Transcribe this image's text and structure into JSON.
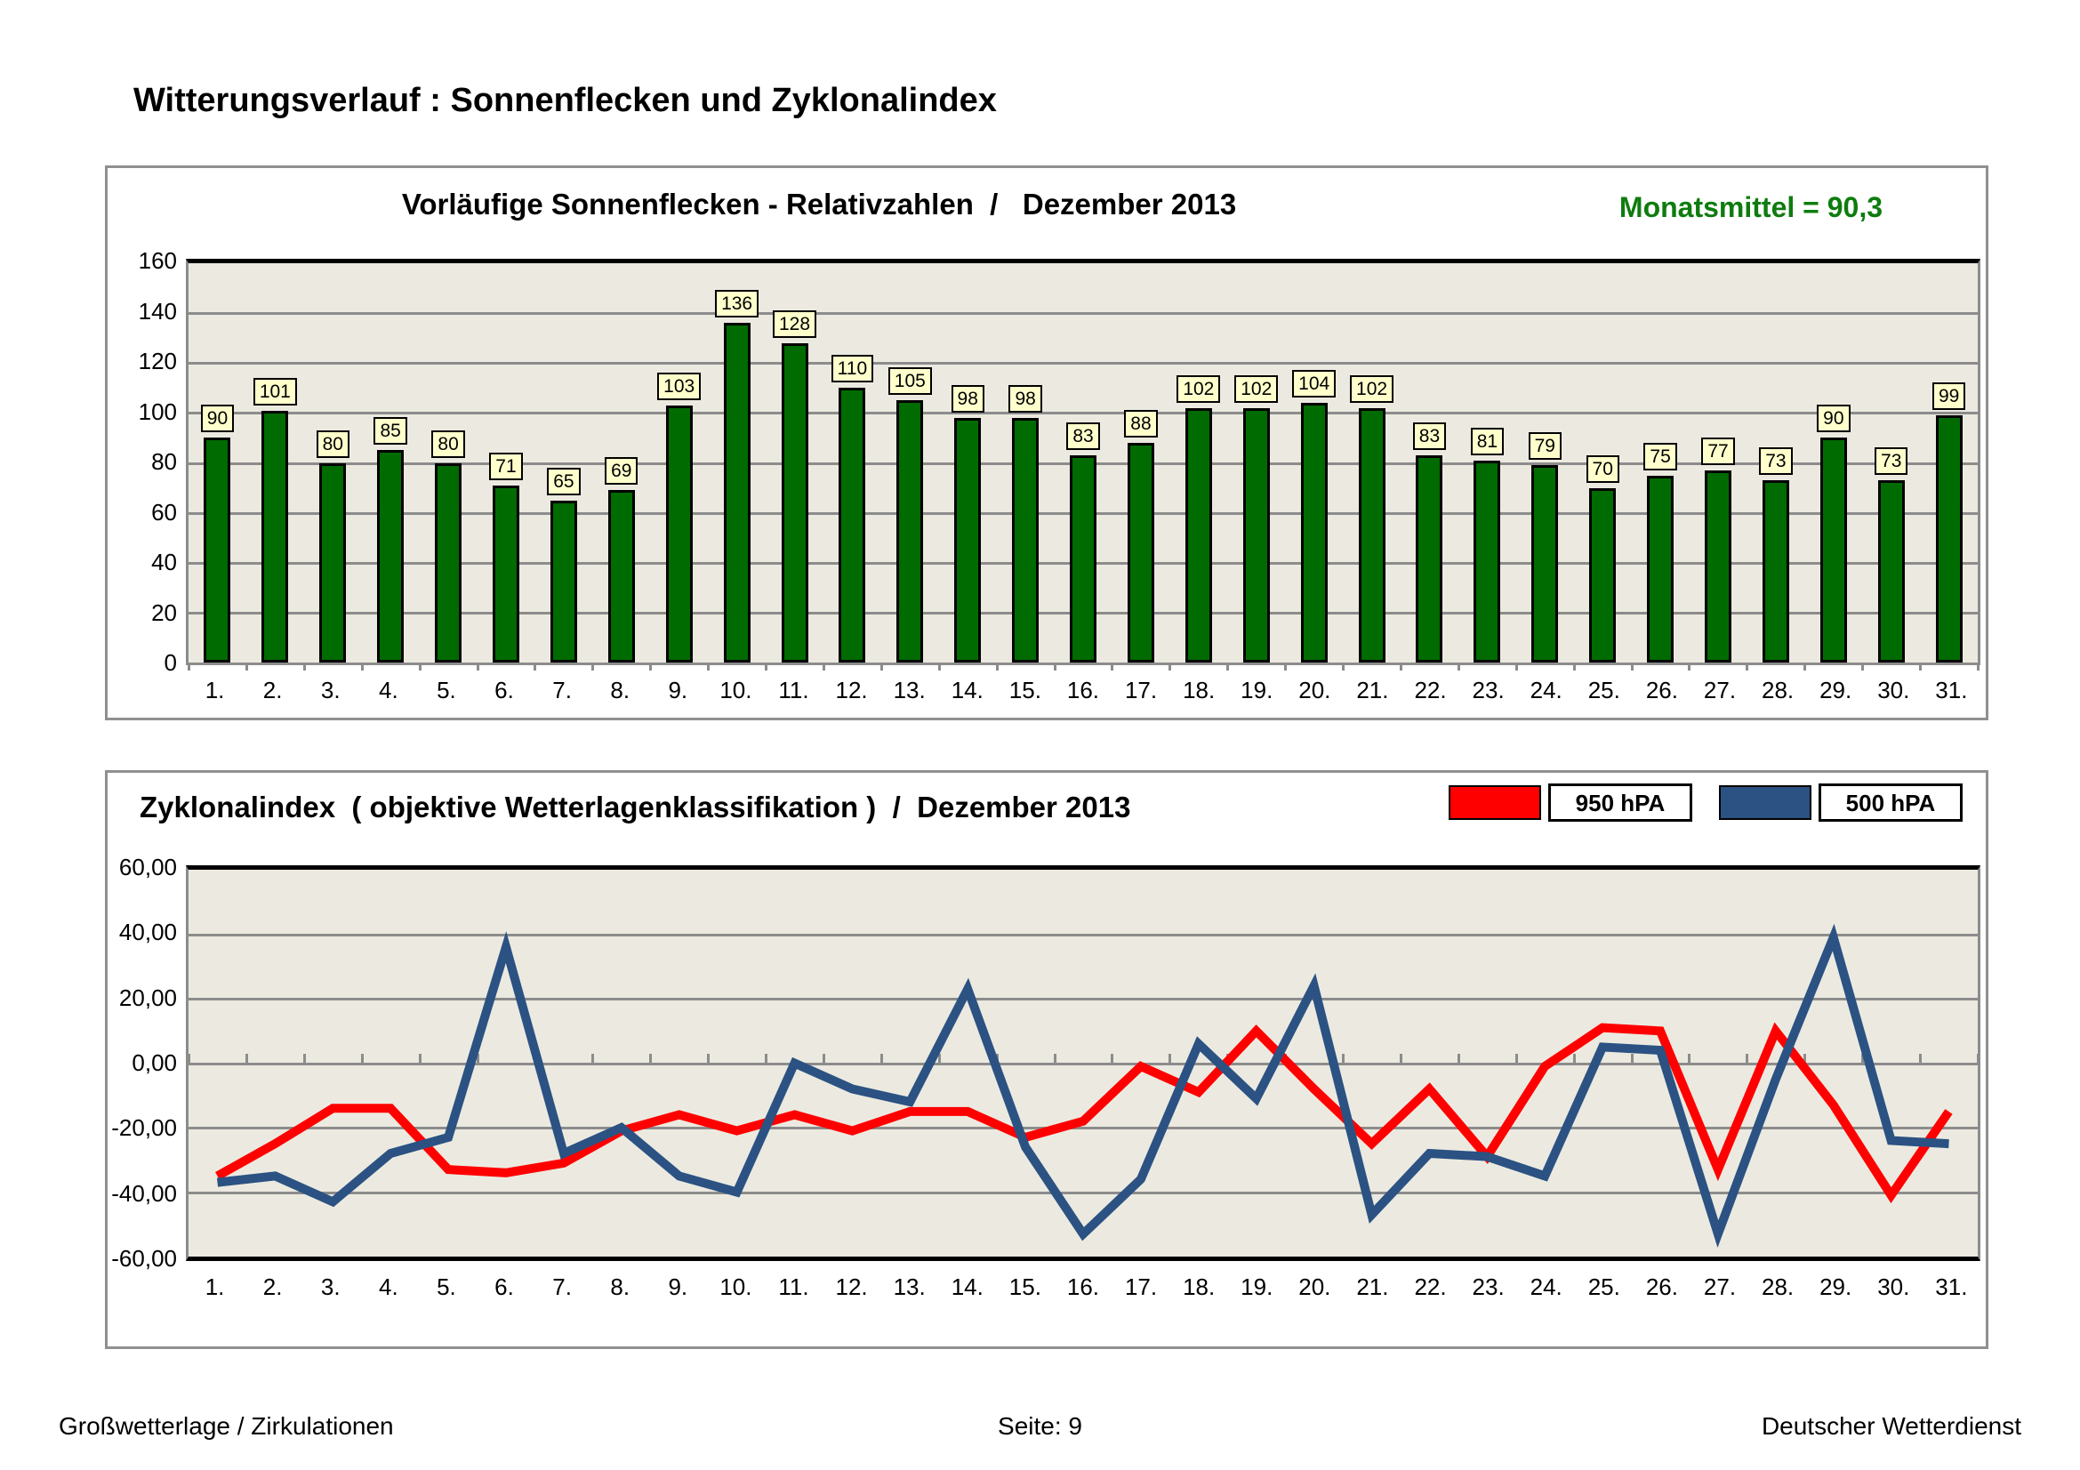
{
  "page_title": "Witterungsverlauf : Sonnenflecken und Zyklonalindex",
  "footer": {
    "left": "Großwetterlage / Zirkulationen",
    "center": "Seite: 9",
    "right": "Deutscher Wetterdienst"
  },
  "colors": {
    "bar_green": "#006b00",
    "line_red": "#ff0000",
    "line_blue": "#2b5282",
    "title_green": "#0e7c0e",
    "plot_background": "#eceae0",
    "gridline_gray": "#8c8c8c",
    "bar_label_box": "#ffffcc"
  },
  "chart_data": [
    {
      "type": "bar",
      "title": "Vorläufige Sonnenflecken - Relativzahlen  /   Dezember 2013",
      "annotation": "Monatsmittel = 90,3",
      "categories": [
        "1.",
        "2.",
        "3.",
        "4.",
        "5.",
        "6.",
        "7.",
        "8.",
        "9.",
        "10.",
        "11.",
        "12.",
        "13.",
        "14.",
        "15.",
        "16.",
        "17.",
        "18.",
        "19.",
        "20.",
        "21.",
        "22.",
        "23.",
        "24.",
        "25.",
        "26.",
        "27.",
        "28.",
        "29.",
        "30.",
        "31."
      ],
      "values": [
        90,
        101,
        80,
        85,
        80,
        71,
        65,
        69,
        103,
        136,
        128,
        110,
        105,
        98,
        98,
        83,
        88,
        102,
        102,
        104,
        102,
        83,
        81,
        79,
        70,
        75,
        77,
        73,
        90,
        73,
        99
      ],
      "ylabel": "",
      "xlabel": "",
      "ylim": [
        0,
        160
      ],
      "ytick_step": 20,
      "ytick_labels": [
        "160",
        "140",
        "120",
        "100",
        "80",
        "60",
        "40",
        "20",
        "0"
      ],
      "grid": true,
      "bar_color": "#006b00",
      "data_labels": true
    },
    {
      "type": "line",
      "title": "Zyklonalindex  ( objektive Wetterlagenklassifikation )  /  Dezember 2013",
      "categories": [
        "1.",
        "2.",
        "3.",
        "4.",
        "5.",
        "6.",
        "7.",
        "8.",
        "9.",
        "10.",
        "11.",
        "12.",
        "13.",
        "14.",
        "15.",
        "16.",
        "17.",
        "18.",
        "19.",
        "20.",
        "21.",
        "22.",
        "23.",
        "24.",
        "25.",
        "26.",
        "27.",
        "28.",
        "29.",
        "30.",
        "31."
      ],
      "series": [
        {
          "name": "950 hPA",
          "color": "#ff0000",
          "values": [
            -35,
            -25,
            -14,
            -14,
            -33,
            -34,
            -31,
            -21,
            -16,
            -21,
            -16,
            -21,
            -15,
            -15,
            -23,
            -18,
            -1,
            -9,
            10,
            -8,
            -25,
            -8,
            -29,
            -1,
            11,
            10,
            -33,
            10,
            -13,
            -41,
            -15
          ]
        },
        {
          "name": "500 hPA",
          "color": "#2b5282",
          "values": [
            -37,
            -35,
            -43,
            -28,
            -23,
            36,
            -28,
            -20,
            -35,
            -40,
            0,
            -8,
            -12,
            23,
            -26,
            -53,
            -36,
            6,
            -11,
            24,
            -47,
            -28,
            -29,
            -35,
            5,
            4,
            -53,
            -5,
            39,
            -24,
            -25
          ]
        }
      ],
      "ylabel": "",
      "xlabel": "",
      "ylim": [
        -60,
        60
      ],
      "ytick_step": 20,
      "ytick_labels": [
        "60,00",
        "40,00",
        "20,00",
        "0,00",
        "-20,00",
        "-40,00",
        "-60,00"
      ],
      "grid": true,
      "legend_position": "top-right",
      "legend": [
        {
          "label": "950 hPA",
          "color": "#ff0000"
        },
        {
          "label": "500 hPA",
          "color": "#2b5282"
        }
      ]
    }
  ]
}
